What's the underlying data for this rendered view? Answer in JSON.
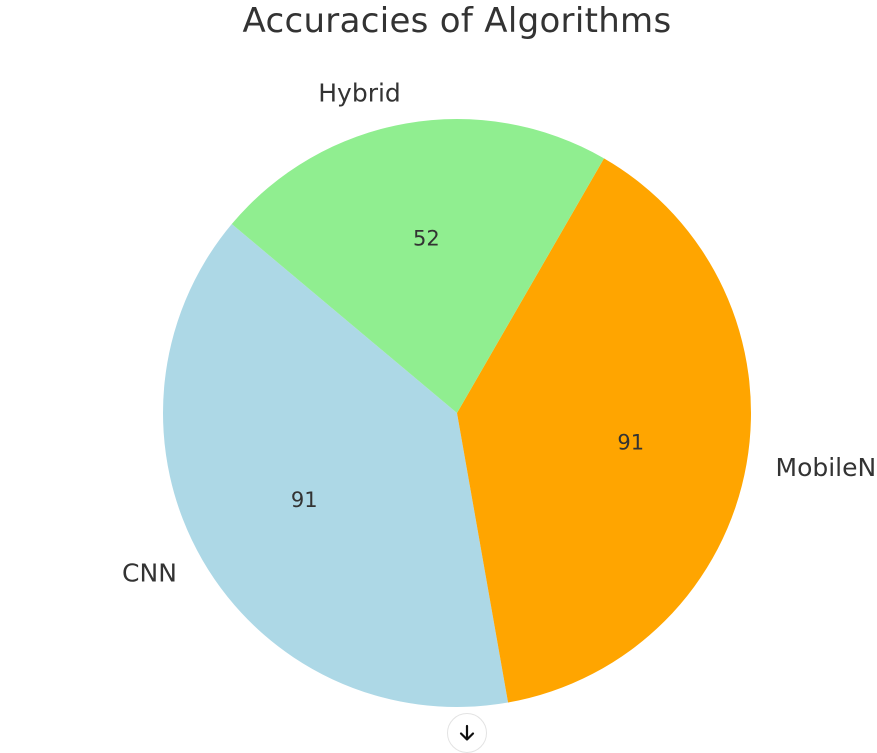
{
  "chart_data": {
    "type": "pie",
    "title": "Accuracies of Algorithms",
    "slices": [
      {
        "label": "CNN",
        "value": 91,
        "color": "#add8e6"
      },
      {
        "label": "MobileNet",
        "value": 91,
        "color": "#ffa500"
      },
      {
        "label": "Hybrid",
        "value": 52,
        "color": "#90ee90"
      }
    ],
    "value_labels_shown": true,
    "legend": "none"
  },
  "controls": {
    "scroll_down_icon": "arrow-down-icon"
  }
}
